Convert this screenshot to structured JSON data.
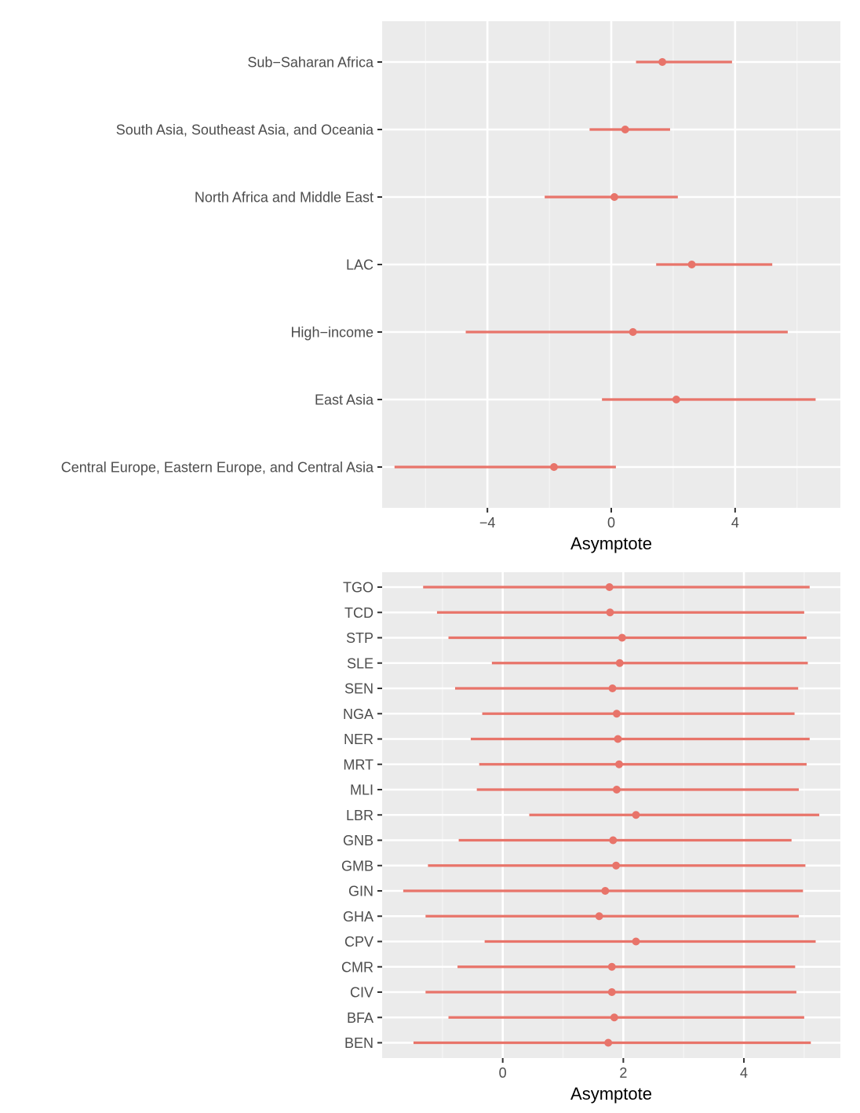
{
  "colors": {
    "panel_background": "#EBEBEB",
    "grid_major": "#FFFFFF",
    "grid_minor": "#F5F5F5",
    "tick": "#333333",
    "tick_label": "#4D4D4D",
    "series": "#E8746A"
  },
  "chart_data": [
    {
      "type": "pointrange",
      "orientation": "horizontal",
      "xlabel": "Asymptote",
      "ylabel": "",
      "xlim": [
        -7.4,
        7.4
      ],
      "x_ticks": [
        -4,
        0,
        4
      ],
      "x_tick_labels": [
        "−4",
        "0",
        "4"
      ],
      "grid": true,
      "categories": [
        "Sub−Saharan Africa",
        "South Asia, Southeast Asia, and Oceania",
        "North Africa and Middle East",
        "LAC",
        "High−income",
        "East Asia",
        "Central Europe, Eastern Europe, and Central Asia"
      ],
      "estimates": [
        1.65,
        0.45,
        0.1,
        2.6,
        0.7,
        2.1,
        -1.85
      ],
      "lower": [
        0.8,
        -0.7,
        -2.15,
        1.45,
        -4.7,
        -0.3,
        -7.0
      ],
      "upper": [
        3.9,
        1.9,
        2.15,
        5.2,
        5.7,
        6.6,
        0.15
      ]
    },
    {
      "type": "pointrange",
      "orientation": "horizontal",
      "xlabel": "Asymptote",
      "ylabel": "",
      "xlim": [
        -2,
        5.6
      ],
      "x_ticks": [
        0,
        2,
        4
      ],
      "x_tick_labels": [
        "0",
        "2",
        "4"
      ],
      "grid": true,
      "categories": [
        "TGO",
        "TCD",
        "STP",
        "SLE",
        "SEN",
        "NGA",
        "NER",
        "MRT",
        "MLI",
        "LBR",
        "GNB",
        "GMB",
        "GIN",
        "GHA",
        "CPV",
        "CMR",
        "CIV",
        "BFA",
        "BEN"
      ],
      "estimates": [
        1.77,
        1.78,
        1.98,
        1.94,
        1.82,
        1.89,
        1.91,
        1.93,
        1.89,
        2.21,
        1.83,
        1.88,
        1.7,
        1.6,
        2.21,
        1.81,
        1.81,
        1.85,
        1.75
      ],
      "lower": [
        -1.32,
        -1.09,
        -0.9,
        -0.18,
        -0.79,
        -0.34,
        -0.53,
        -0.39,
        -0.43,
        0.44,
        -0.73,
        -1.24,
        -1.65,
        -1.28,
        -0.3,
        -0.75,
        -1.28,
        -0.9,
        -1.48
      ],
      "upper": [
        5.09,
        5.0,
        5.04,
        5.06,
        4.9,
        4.84,
        5.09,
        5.04,
        4.91,
        5.25,
        4.79,
        5.02,
        4.98,
        4.91,
        5.19,
        4.85,
        4.87,
        5.0,
        5.11
      ]
    }
  ]
}
